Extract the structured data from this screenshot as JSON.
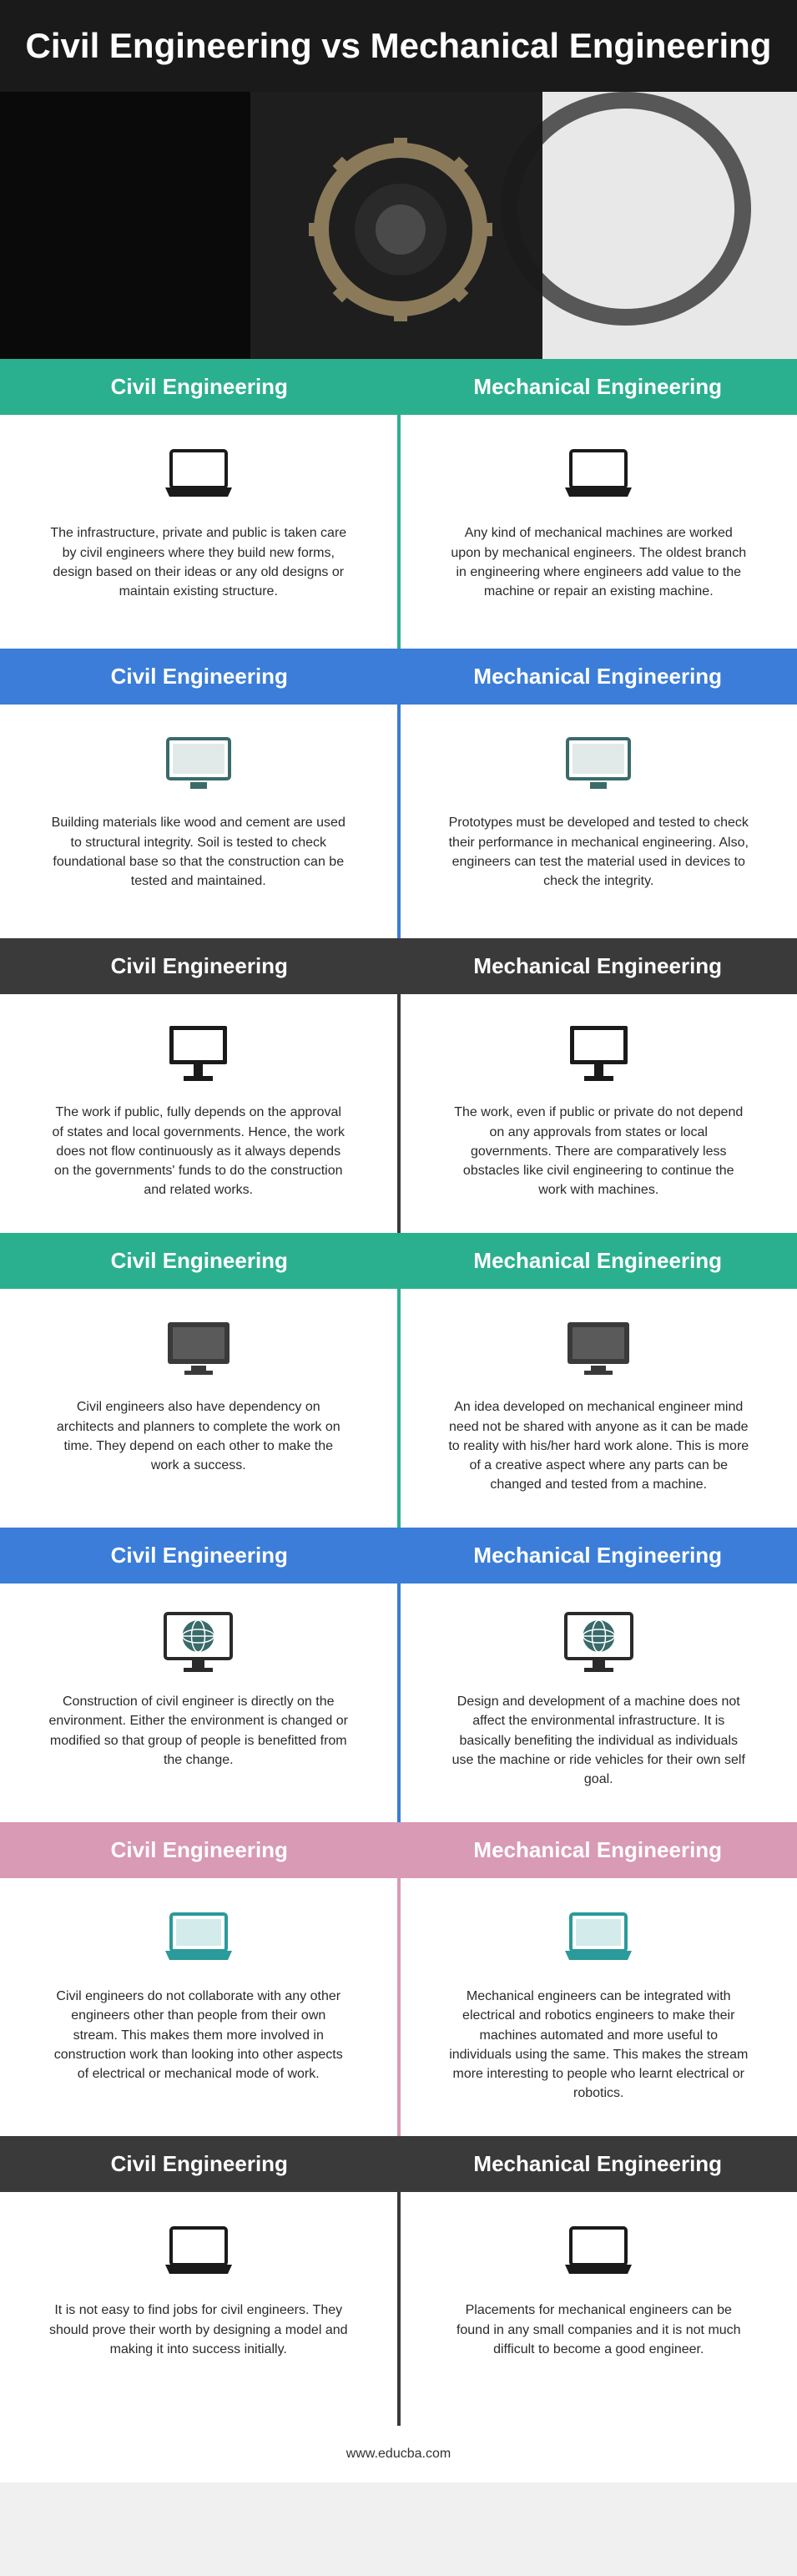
{
  "title": "Civil Engineering vs Mechanical Engineering",
  "labels": {
    "civil": "Civil Engineering",
    "mech": "Mechanical Engineering"
  },
  "footer": "www.educba.com",
  "sections": [
    {
      "header_bg": "#2bb08f",
      "divider": "#2bb08f",
      "icon": "laptop",
      "icon_color": "#1a1a1a",
      "civil": "The infrastructure, private and public is taken care by civil engineers where they build new forms, design based on their ideas or any old designs or maintain existing structure.",
      "mech": "Any kind of mechanical machines are worked upon by mechanical engineers. The oldest branch in engineering where engineers add value to the machine or repair an existing machine."
    },
    {
      "header_bg": "#3b7dd8",
      "divider": "#3b7dd8",
      "icon": "monitor-flat",
      "icon_color": "#3a6a6a",
      "civil": "Building materials like wood and cement are used to structural integrity. Soil is tested to check foundational base so that the construction can be tested and maintained.",
      "mech": "Prototypes must be developed and tested to check their performance in mechanical engineering. Also, engineers can test the material used in devices to check the integrity."
    },
    {
      "header_bg": "#3a3a3a",
      "divider": "#3a3a3a",
      "icon": "monitor-stand",
      "icon_color": "#1a1a1a",
      "civil": "The work if public, fully depends on the approval of states and local governments. Hence, the work does not flow continuously as it always depends on the governments' funds to do the construction and related works.",
      "mech": "The work, even if public or private do not depend on any approvals from states or local governments. There are comparatively less obstacles like civil engineering to continue the work with machines."
    },
    {
      "header_bg": "#2bb08f",
      "divider": "#2bb08f",
      "icon": "monitor-dark",
      "icon_color": "#3a3a3a",
      "civil": "Civil engineers also have dependency on architects and planners to complete the work on time. They depend on each other to make the work a success.",
      "mech": "An idea developed on mechanical engineer mind need not be shared with anyone as it can be made to reality with his/her hard work alone. This is more of a creative aspect where any parts can be changed and tested from a machine."
    },
    {
      "header_bg": "#3b7dd8",
      "divider": "#3b7dd8",
      "icon": "monitor-globe",
      "icon_color": "#3a6a6a",
      "civil": "Construction of civil engineer is directly on the environment. Either the environment is changed or modified so that group of people is benefitted from the change.",
      "mech": "Design and development of a machine does not affect the environmental infrastructure. It is basically benefiting the individual as individuals use the machine or ride vehicles for their own self goal."
    },
    {
      "header_bg": "#d89ab5",
      "divider": "#d89ab5",
      "icon": "laptop-teal",
      "icon_color": "#2a9a9a",
      "civil": "Civil engineers do not collaborate with any other engineers other than people from their own stream. This makes them more involved in construction work than looking into other aspects of electrical or mechanical mode of work.",
      "mech": "Mechanical engineers can be integrated with electrical and robotics engineers to make their machines automated and more useful to individuals using the same. This makes the stream more interesting to people who learnt electrical or robotics."
    },
    {
      "header_bg": "#3a3a3a",
      "divider": "#3a3a3a",
      "icon": "laptop",
      "icon_color": "#1a1a1a",
      "civil": "It is not easy to find jobs for civil engineers. They should prove their worth by designing a model and making it into success initially.",
      "mech": "Placements for mechanical engineers can be found in any small companies and it is not much difficult to become a good engineer."
    }
  ]
}
